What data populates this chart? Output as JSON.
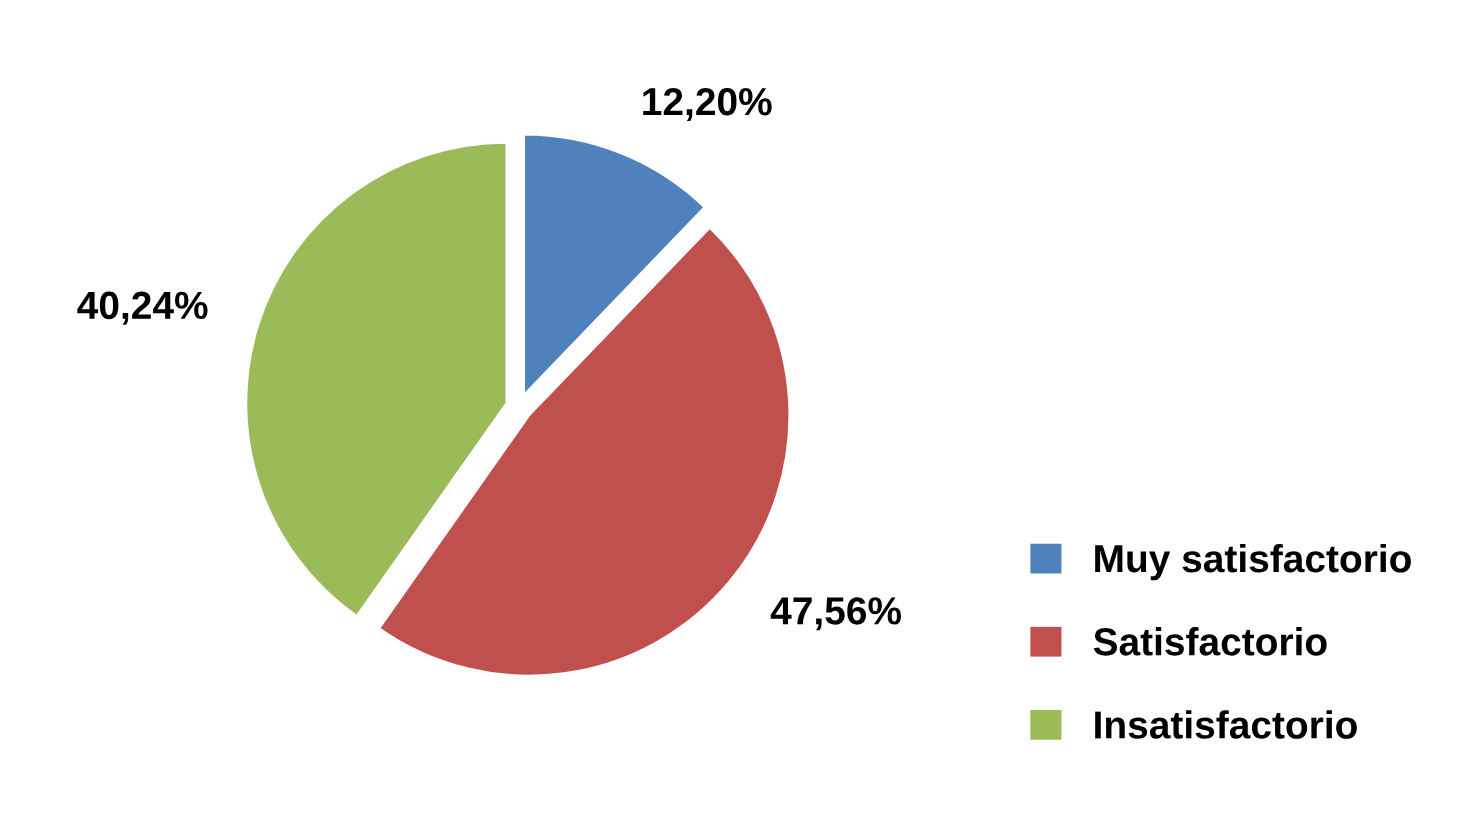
{
  "chart_data": {
    "type": "pie",
    "categories": [
      "Muy satisfactorio",
      "Satisfactorio",
      "Insatisfactorio"
    ],
    "values": [
      12.2,
      47.56,
      40.24
    ],
    "colors": [
      "#4f81bd",
      "#c0504d",
      "#9bbb59"
    ],
    "value_labels": [
      "12,20%",
      "47,56%",
      "40,24%"
    ],
    "legend": "bottom right"
  }
}
